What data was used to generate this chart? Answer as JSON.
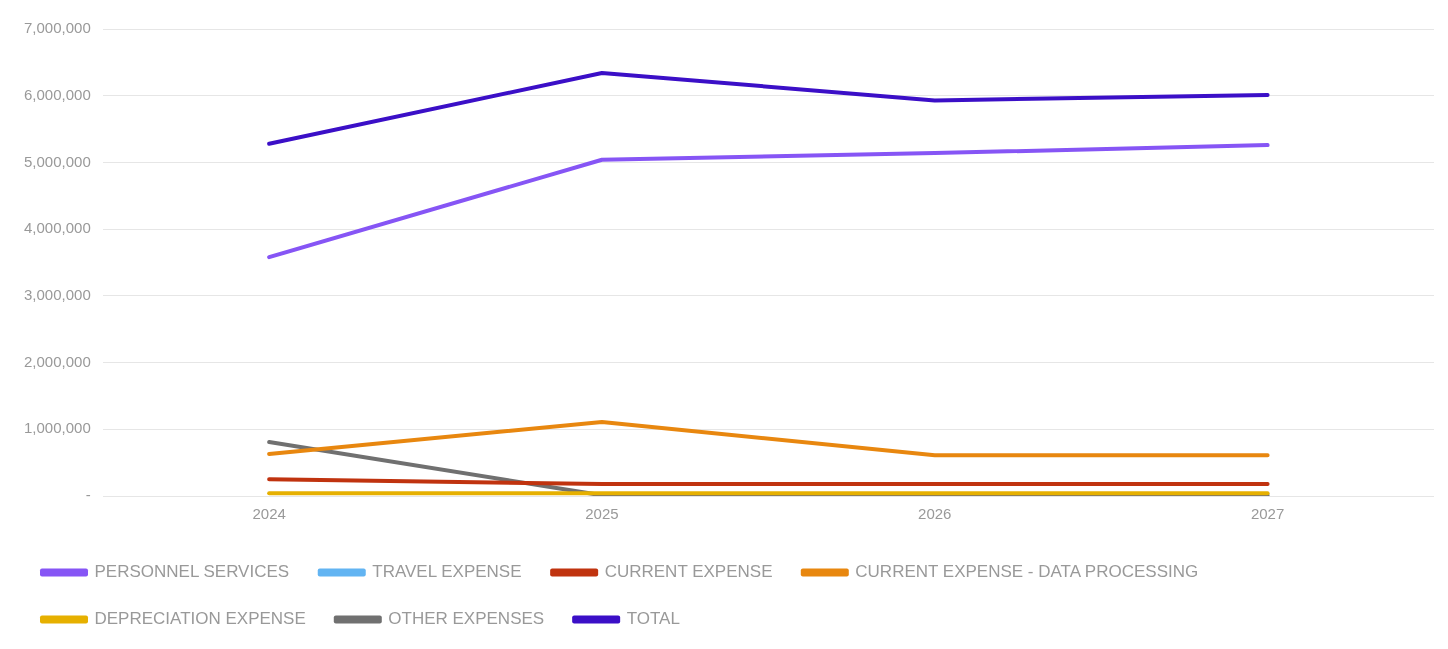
{
  "chart_data": {
    "type": "line",
    "categories": [
      "2024",
      "2025",
      "2026",
      "2027"
    ],
    "series": [
      {
        "name": "PERSONNEL SERVICES",
        "color": "#8655f5",
        "values": [
          3580000,
          5040000,
          5140000,
          5260000
        ]
      },
      {
        "name": "TRAVEL EXPENSE",
        "color": "#62b4f2",
        "values": [
          null,
          null,
          null,
          null
        ]
      },
      {
        "name": "CURRENT EXPENSE",
        "color": "#c0330f",
        "values": [
          250000,
          180000,
          180000,
          180000
        ]
      },
      {
        "name": "CURRENT EXPENSE - DATA PROCESSING",
        "color": "#e8870f",
        "values": [
          630000,
          1110000,
          610000,
          610000
        ]
      },
      {
        "name": "DEPRECIATION EXPENSE",
        "color": "#e6b000",
        "values": [
          40000,
          40000,
          40000,
          40000
        ]
      },
      {
        "name": "OTHER EXPENSES",
        "color": "#707070",
        "values": [
          810000,
          10000,
          10000,
          10000
        ]
      },
      {
        "name": "TOTAL",
        "color": "#3b0fc7",
        "values": [
          5280000,
          6340000,
          5930000,
          6010000
        ]
      }
    ],
    "ylim": [
      0,
      7000000
    ],
    "yticks": [
      {
        "value": 0,
        "label": "-"
      },
      {
        "value": 1000000,
        "label": "1,000,000"
      },
      {
        "value": 2000000,
        "label": "2,000,000"
      },
      {
        "value": 3000000,
        "label": "3,000,000"
      },
      {
        "value": 4000000,
        "label": "4,000,000"
      },
      {
        "value": 5000000,
        "label": "5,000,000"
      },
      {
        "value": 6000000,
        "label": "6,000,000"
      },
      {
        "value": 7000000,
        "label": "7,000,000"
      }
    ],
    "grid": "y",
    "legend": "bottom",
    "marker": "none",
    "line_style": "solid"
  }
}
